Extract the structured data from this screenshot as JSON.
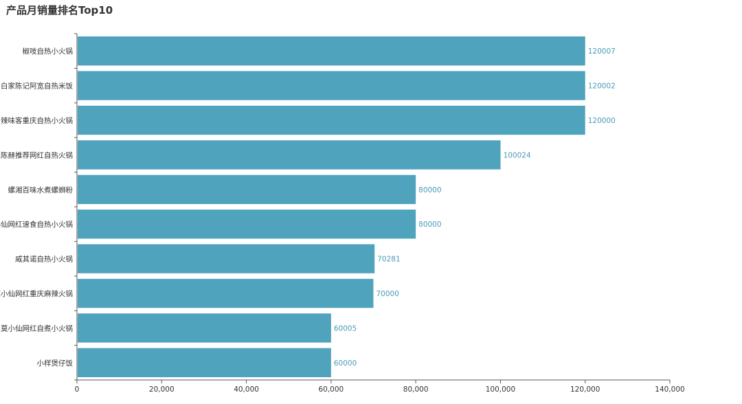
{
  "title": "产品月销量排名Top10",
  "colors": {
    "bar": "#4fa3bd",
    "value_label": "#4a9ab8",
    "axis": "#555555",
    "text": "#333333"
  },
  "chart_data": {
    "type": "bar",
    "orientation": "horizontal",
    "title": "产品月销量排名Top10",
    "categories": [
      "椒吱自热小火锅",
      "白家陈记阿宽自热米饭",
      "辣味客重庆自热小火锅",
      "王陈赫推荐网红自热火锅",
      "螺湘百味水煮螺蛳粉",
      "小仙网红速食自热小火锅",
      "威其诺自热小火锅",
      "莫小仙网红重庆麻辣火锅",
      "莫小仙网红自煮小火锅",
      "小样煲仔饭"
    ],
    "values": [
      120007,
      120002,
      120000,
      100024,
      80000,
      80000,
      70281,
      70000,
      60005,
      60000
    ],
    "xlim": [
      0,
      140000
    ],
    "xticks": [
      "0",
      "20,000",
      "40,000",
      "60,000",
      "80,000",
      "100,000",
      "120,000",
      "140,000"
    ],
    "grid": false
  }
}
